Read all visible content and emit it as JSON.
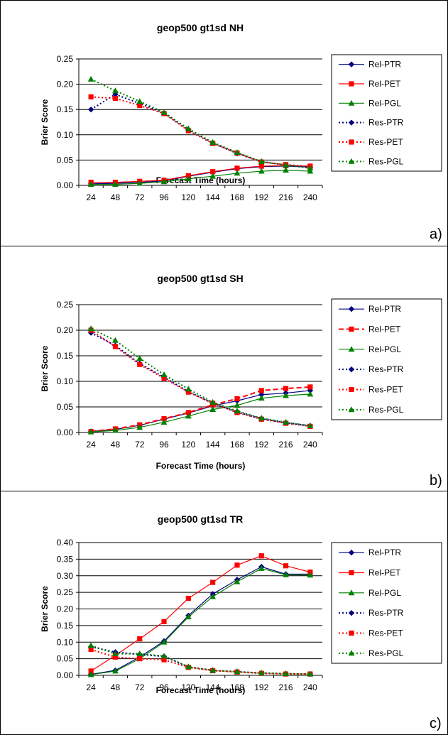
{
  "colors": {
    "PTR": "#000080",
    "PET": "#ff0000",
    "PGL": "#008000"
  },
  "chart_data": [
    {
      "type": "line",
      "panel_label": "a)",
      "title": "geop500 gt1sd NH",
      "xlabel": "Forecast Time (hours)",
      "ylabel": "Brier Score",
      "categories": [
        "24",
        "48",
        "72",
        "96",
        "120",
        "144",
        "168",
        "192",
        "216",
        "240"
      ],
      "ylim": [
        0,
        0.25
      ],
      "yticks": [
        "0.00",
        "0.05",
        "0.10",
        "0.15",
        "0.20",
        "0.25"
      ],
      "grid": true,
      "legend_position": "right",
      "series": [
        {
          "name": "Rel-PTR",
          "model": "PTR",
          "style": "solid",
          "marker": "diamond",
          "values": [
            0.003,
            0.004,
            0.006,
            0.009,
            0.018,
            0.026,
            0.033,
            0.037,
            0.038,
            0.036
          ]
        },
        {
          "name": "Rel-PET",
          "model": "PET",
          "style": "solid",
          "marker": "square",
          "values": [
            0.006,
            0.006,
            0.008,
            0.01,
            0.019,
            0.027,
            0.034,
            0.038,
            0.039,
            0.038
          ]
        },
        {
          "name": "Rel-PGL",
          "model": "PGL",
          "style": "solid",
          "marker": "triangle",
          "values": [
            0.002,
            0.002,
            0.004,
            0.007,
            0.013,
            0.018,
            0.024,
            0.028,
            0.03,
            0.028
          ]
        },
        {
          "name": "Res-PTR",
          "model": "PTR",
          "style": "dotted",
          "marker": "diamond",
          "values": [
            0.15,
            0.18,
            0.162,
            0.143,
            0.11,
            0.084,
            0.063,
            0.047,
            0.04,
            0.036
          ]
        },
        {
          "name": "Res-PET",
          "model": "PET",
          "style": "dotted",
          "marker": "square",
          "values": [
            0.175,
            0.172,
            0.158,
            0.142,
            0.108,
            0.083,
            0.064,
            0.046,
            0.041,
            0.037
          ]
        },
        {
          "name": "Res-PGL",
          "model": "PGL",
          "style": "dotted",
          "marker": "triangle",
          "values": [
            0.21,
            0.187,
            0.166,
            0.144,
            0.112,
            0.085,
            0.065,
            0.047,
            0.04,
            0.034
          ]
        }
      ]
    },
    {
      "type": "line",
      "panel_label": "b)",
      "title": "geop500 gt1sd SH",
      "xlabel": "Forecast Time (hours)",
      "ylabel": "Brier Score",
      "categories": [
        "24",
        "48",
        "72",
        "96",
        "120",
        "144",
        "168",
        "192",
        "216",
        "240"
      ],
      "ylim": [
        0,
        0.25
      ],
      "yticks": [
        "0.00",
        "0.05",
        "0.10",
        "0.15",
        "0.20",
        "0.25"
      ],
      "grid": true,
      "legend_position": "right",
      "series": [
        {
          "name": "Rel-PTR",
          "model": "PTR",
          "style": "solid",
          "marker": "diamond",
          "values": [
            0.002,
            0.006,
            0.014,
            0.026,
            0.038,
            0.052,
            0.062,
            0.074,
            0.077,
            0.082
          ]
        },
        {
          "name": "Rel-PET",
          "model": "PET",
          "style": "dashed",
          "marker": "square",
          "values": [
            0.002,
            0.007,
            0.015,
            0.027,
            0.039,
            0.054,
            0.066,
            0.082,
            0.086,
            0.089
          ]
        },
        {
          "name": "Rel-PGL",
          "model": "PGL",
          "style": "solid",
          "marker": "triangle",
          "values": [
            0.001,
            0.004,
            0.01,
            0.02,
            0.032,
            0.045,
            0.053,
            0.067,
            0.072,
            0.075
          ]
        },
        {
          "name": "Res-PTR",
          "model": "PTR",
          "style": "dotted",
          "marker": "diamond",
          "values": [
            0.195,
            0.17,
            0.135,
            0.108,
            0.08,
            0.057,
            0.04,
            0.027,
            0.019,
            0.013
          ]
        },
        {
          "name": "Res-PET",
          "model": "PET",
          "style": "dotted",
          "marker": "square",
          "values": [
            0.2,
            0.168,
            0.133,
            0.106,
            0.079,
            0.057,
            0.039,
            0.026,
            0.018,
            0.012
          ]
        },
        {
          "name": "Res-PGL",
          "model": "PGL",
          "style": "dotted",
          "marker": "triangle",
          "values": [
            0.203,
            0.18,
            0.145,
            0.113,
            0.085,
            0.059,
            0.042,
            0.028,
            0.02,
            0.013
          ]
        }
      ]
    },
    {
      "type": "line",
      "panel_label": "c)",
      "title": "geop500 gt1sd TR",
      "xlabel": "Forecast Time (hours)",
      "ylabel": "Brier Score",
      "categories": [
        "24",
        "48",
        "72",
        "96",
        "120",
        "144",
        "168",
        "192",
        "216",
        "240"
      ],
      "ylim": [
        0,
        0.4
      ],
      "yticks": [
        "0.00",
        "0.05",
        "0.10",
        "0.15",
        "0.20",
        "0.25",
        "0.30",
        "0.35",
        "0.40"
      ],
      "grid": true,
      "legend_position": "right",
      "series": [
        {
          "name": "Rel-PTR",
          "model": "PTR",
          "style": "solid",
          "marker": "diamond",
          "values": [
            0.003,
            0.015,
            0.055,
            0.103,
            0.18,
            0.245,
            0.288,
            0.327,
            0.305,
            0.305
          ]
        },
        {
          "name": "Rel-PET",
          "model": "PET",
          "style": "solid",
          "marker": "square",
          "values": [
            0.013,
            0.06,
            0.11,
            0.162,
            0.232,
            0.28,
            0.332,
            0.36,
            0.33,
            0.311
          ]
        },
        {
          "name": "Rel-PGL",
          "model": "PGL",
          "style": "solid",
          "marker": "triangle",
          "values": [
            0.002,
            0.013,
            0.05,
            0.1,
            0.176,
            0.237,
            0.282,
            0.322,
            0.303,
            0.302
          ]
        },
        {
          "name": "Res-PTR",
          "model": "PTR",
          "style": "dotted",
          "marker": "diamond",
          "values": [
            0.086,
            0.07,
            0.063,
            0.057,
            0.025,
            0.015,
            0.011,
            0.007,
            0.005,
            0.004
          ]
        },
        {
          "name": "Res-PET",
          "model": "PET",
          "style": "dotted",
          "marker": "square",
          "values": [
            0.078,
            0.055,
            0.05,
            0.047,
            0.024,
            0.014,
            0.01,
            0.006,
            0.004,
            0.004
          ]
        },
        {
          "name": "Res-PGL",
          "model": "PGL",
          "style": "dotted",
          "marker": "triangle",
          "values": [
            0.09,
            0.065,
            0.065,
            0.058,
            0.026,
            0.015,
            0.011,
            0.007,
            0.005,
            0.004
          ]
        }
      ]
    }
  ]
}
